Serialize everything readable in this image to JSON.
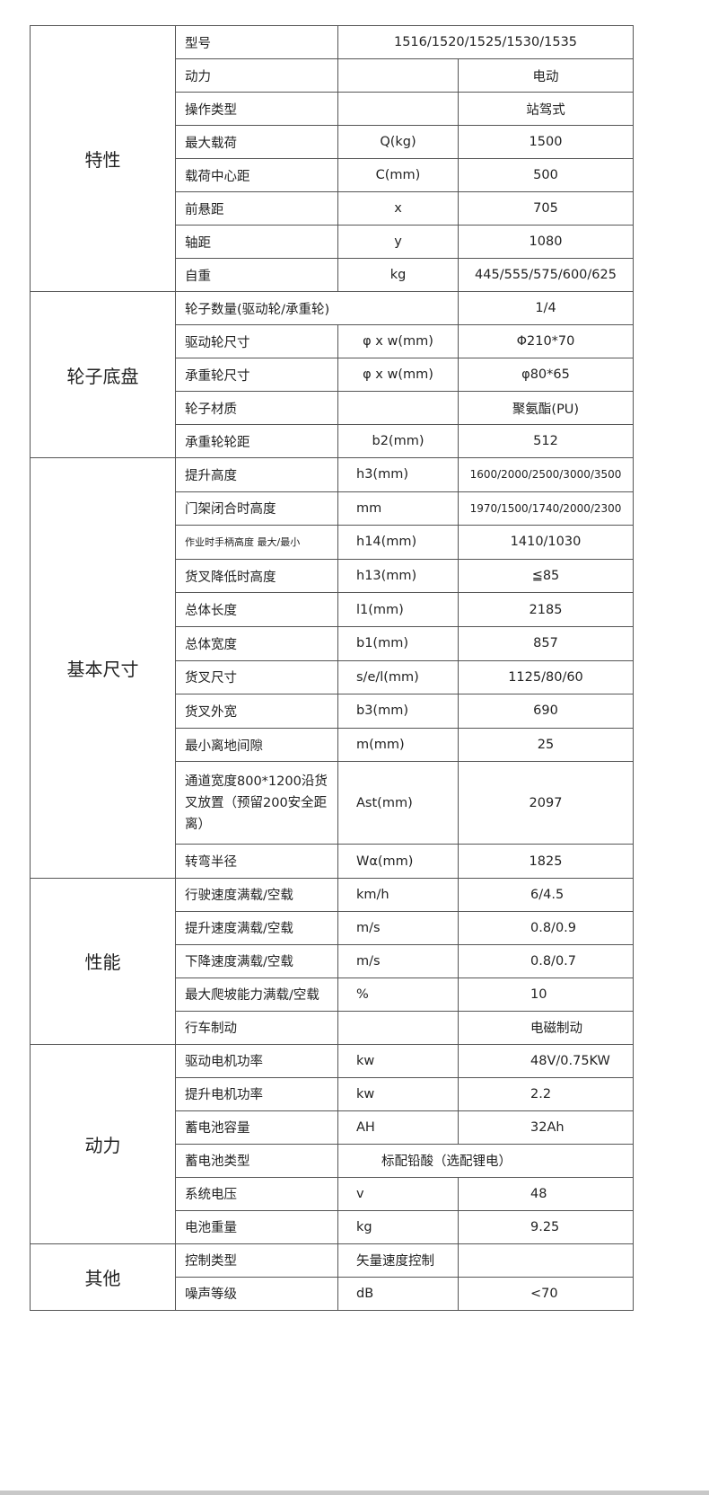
{
  "groups": [
    {
      "label": "特性",
      "rows": [
        {
          "name": "型号",
          "span_value": "1516/1520/1525/1530/1535"
        },
        {
          "name": "动力",
          "unit": "",
          "value": "电动"
        },
        {
          "name": "操作类型",
          "unit": "",
          "value": "站驾式"
        },
        {
          "name": "最大载荷",
          "unit": "Q(kg)",
          "value": "1500"
        },
        {
          "name": "载荷中心距",
          "unit": "C(mm)",
          "value": "500"
        },
        {
          "name": "前悬距",
          "unit": "x",
          "value": "705"
        },
        {
          "name": "轴距",
          "unit": "y",
          "value": "1080"
        },
        {
          "name": "自重",
          "unit": "kg",
          "value": "445/555/575/600/625"
        }
      ]
    },
    {
      "label": "轮子底盘",
      "rows": [
        {
          "name_span": "轮子数量(驱动轮/承重轮)",
          "value": "1/4"
        },
        {
          "name": "驱动轮尺寸",
          "unit": "φ x w(mm)",
          "value": "Φ210*70"
        },
        {
          "name": "承重轮尺寸",
          "unit": "φ x w(mm)",
          "value": "φ80*65"
        },
        {
          "name": "轮子材质",
          "unit": "",
          "value": "聚氨酯(PU)"
        },
        {
          "name": "承重轮轮距",
          "unit": "b2(mm)",
          "value": "512"
        }
      ]
    },
    {
      "label": "基本尺寸",
      "rows": [
        {
          "name": "提升高度",
          "unit": "h3(mm)",
          "value": "1600/2000/2500/3000/3500"
        },
        {
          "name": "门架闭合时高度",
          "unit": "mm",
          "value": "1970/1500/1740/2000/2300"
        },
        {
          "name": "作业时手柄高度  最大/最小",
          "unit": "h14(mm)",
          "value": "1410/1030"
        },
        {
          "name": "货叉降低时高度",
          "unit": "h13(mm)",
          "value": "≦85"
        },
        {
          "name": "总体长度",
          "unit": "l1(mm)",
          "value": "2185"
        },
        {
          "name": "总体宽度",
          "unit": "b1(mm)",
          "value": "857"
        },
        {
          "name": "货叉尺寸",
          "unit": "s/e/l(mm)",
          "value": "1125/80/60"
        },
        {
          "name": "货叉外宽",
          "unit": "b3(mm)",
          "value": "690"
        },
        {
          "name": "最小离地间隙",
          "unit": "m(mm)",
          "value": "25"
        },
        {
          "name": "通道宽度800*1200沿货叉放置（预留200安全距离）",
          "unit": "Ast(mm)",
          "value": "2097"
        },
        {
          "name": "转弯半径",
          "unit": "Wα(mm)",
          "value": "1825"
        }
      ]
    },
    {
      "label": "性能",
      "rows": [
        {
          "name": "行驶速度满载/空载",
          "unit": "km/h",
          "value": "6/4.5"
        },
        {
          "name": "提升速度满载/空载",
          "unit": "m/s",
          "value": "0.8/0.9"
        },
        {
          "name": "下降速度满载/空载",
          "unit": "m/s",
          "value": "0.8/0.7"
        },
        {
          "name": "最大爬坡能力满载/空载",
          "unit": "%",
          "value": "10"
        },
        {
          "name": "行车制动",
          "unit": "",
          "value": "电磁制动"
        }
      ]
    },
    {
      "label": "动力",
      "rows": [
        {
          "name": "驱动电机功率",
          "unit": "kw",
          "value": "48V/0.75KW"
        },
        {
          "name": "提升电机功率",
          "unit": "kw",
          "value": "2.2"
        },
        {
          "name": "蓄电池容量",
          "unit": "AH",
          "value": "32Ah"
        },
        {
          "name": "蓄电池类型",
          "span_value": "标配铅酸（选配锂电）"
        },
        {
          "name": "系统电压",
          "unit": "v",
          "value": "48"
        },
        {
          "name": "电池重量",
          "unit": "kg",
          "value": "9.25"
        }
      ]
    },
    {
      "label": "其他",
      "rows": [
        {
          "name": "控制类型",
          "unit": "矢量速度控制",
          "value": ""
        },
        {
          "name": "噪声等级",
          "unit": "dB",
          "value": "<70"
        }
      ]
    }
  ]
}
